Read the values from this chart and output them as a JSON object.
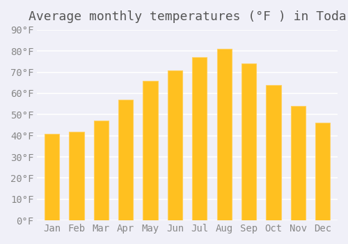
{
  "title": "Average monthly temperatures (°F ) in Toda",
  "months": [
    "Jan",
    "Feb",
    "Mar",
    "Apr",
    "May",
    "Jun",
    "Jul",
    "Aug",
    "Sep",
    "Oct",
    "Nov",
    "Dec"
  ],
  "values": [
    41,
    42,
    47,
    57,
    66,
    71,
    77,
    81,
    74,
    64,
    54,
    46
  ],
  "bar_color": "#FFC020",
  "bar_edge_color": "#FFD060",
  "background_color": "#F0F0F8",
  "ylim": [
    0,
    90
  ],
  "yticks": [
    0,
    10,
    20,
    30,
    40,
    50,
    60,
    70,
    80,
    90
  ],
  "title_fontsize": 13,
  "tick_fontsize": 10,
  "grid_color": "#FFFFFF",
  "axis_color": "#AAAAAA"
}
